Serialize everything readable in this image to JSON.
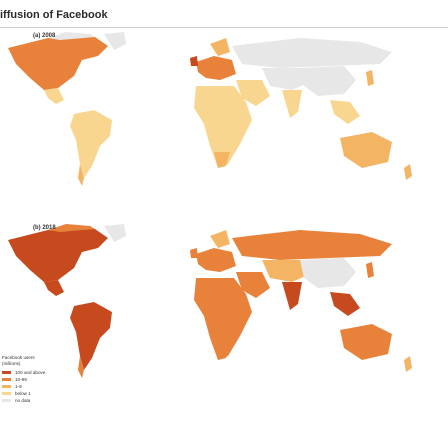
{
  "title": "iffusion of Facebook",
  "panels": [
    {
      "label": "(a) 2008"
    },
    {
      "label": "(b) 2018"
    }
  ],
  "legend": {
    "title": "Facebook users",
    "subtitle": "(millions)",
    "items": [
      {
        "label": "100 and above",
        "color": "#c64a1e"
      },
      {
        "label": "10-99",
        "color": "#e8823b"
      },
      {
        "label": "1-9",
        "color": "#f3b463"
      },
      {
        "label": "below 1",
        "color": "#f9d68f"
      },
      {
        "label": "no data",
        "color": "#e7e7e7"
      }
    ]
  },
  "colors": {
    "no_data": "#e7e7e7",
    "below_1": "#f9d68f",
    "one_to_9": "#f3b463",
    "ten_to_99": "#e8823b",
    "hundred_plus": "#c64a1e"
  }
}
